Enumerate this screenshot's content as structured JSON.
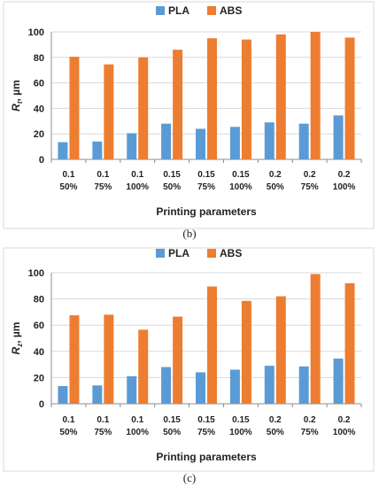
{
  "colors": {
    "PLA": "#5b9bd5",
    "ABS": "#ed7d31"
  },
  "chart_data": [
    {
      "type": "bar",
      "caption": "(b)",
      "ylabel": {
        "symbol": "R",
        "subscript": "t",
        "unit": ", µm"
      },
      "xlabel": "Printing parameters",
      "legend_position": "top-center",
      "ylim": [
        0,
        100
      ],
      "yticks": [
        0,
        20,
        40,
        60,
        80,
        100
      ],
      "grid": true,
      "categories": [
        "0.1 50%",
        "0.1 75%",
        "0.1 100%",
        "0.15 50%",
        "0.15 75%",
        "0.15 100%",
        "0.2 50%",
        "0.2 75%",
        "0.2 100%"
      ],
      "category_lines": [
        [
          "0.1",
          "50%"
        ],
        [
          "0.1",
          "75%"
        ],
        [
          "0.1",
          "100%"
        ],
        [
          "0.15",
          "50%"
        ],
        [
          "0.15",
          "75%"
        ],
        [
          "0.15",
          "100%"
        ],
        [
          "0.2",
          "50%"
        ],
        [
          "0.2",
          "75%"
        ],
        [
          "0.2",
          "100%"
        ]
      ],
      "series": [
        {
          "name": "PLA",
          "values": [
            13.5,
            14,
            20.5,
            28,
            24,
            25.5,
            29,
            28,
            34.5
          ]
        },
        {
          "name": "ABS",
          "values": [
            80.5,
            74.5,
            80,
            86,
            95,
            94,
            98,
            100,
            95.5
          ]
        }
      ]
    },
    {
      "type": "bar",
      "caption": "(c)",
      "ylabel": {
        "symbol": "R",
        "subscript": "z",
        "unit": ", µm"
      },
      "xlabel": "Printing parameters",
      "legend_position": "top-center",
      "ylim": [
        0,
        100
      ],
      "yticks": [
        0,
        20,
        40,
        60,
        80,
        100
      ],
      "grid": true,
      "categories": [
        "0.1 50%",
        "0.1 75%",
        "0.1 100%",
        "0.15 50%",
        "0.15 75%",
        "0.15 100%",
        "0.2 50%",
        "0.2 75%",
        "0.2 100%"
      ],
      "category_lines": [
        [
          "0.1",
          "50%"
        ],
        [
          "0.1",
          "75%"
        ],
        [
          "0.1",
          "100%"
        ],
        [
          "0.15",
          "50%"
        ],
        [
          "0.15",
          "75%"
        ],
        [
          "0.15",
          "100%"
        ],
        [
          "0.2",
          "50%"
        ],
        [
          "0.2",
          "75%"
        ],
        [
          "0.2",
          "100%"
        ]
      ],
      "series": [
        {
          "name": "PLA",
          "values": [
            13.5,
            14,
            21,
            28,
            24,
            26,
            29,
            28.5,
            34.5
          ]
        },
        {
          "name": "ABS",
          "values": [
            67.5,
            68,
            56.5,
            66.5,
            89.5,
            78.5,
            82,
            99,
            92
          ]
        }
      ]
    }
  ]
}
